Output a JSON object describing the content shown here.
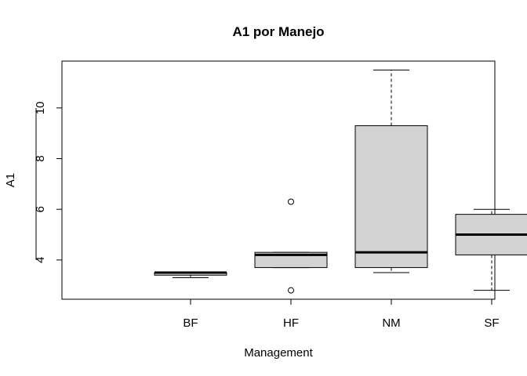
{
  "chart_data": {
    "type": "boxplot",
    "title": "A1 por Manejo",
    "xlabel": "Management",
    "ylabel": "A1",
    "ylim": [
      2.45,
      11.85
    ],
    "yticks": [
      4,
      6,
      8,
      10
    ],
    "categories": [
      "BF",
      "HF",
      "NM",
      "SF"
    ],
    "boxes": [
      {
        "category": "BF",
        "whisker_low": 3.3,
        "q1": 3.4,
        "median": 3.5,
        "q3": 3.5,
        "whisker_high": 3.5,
        "outliers": []
      },
      {
        "category": "HF",
        "whisker_low": 3.7,
        "q1": 3.7,
        "median": 4.2,
        "q3": 4.3,
        "whisker_high": 4.3,
        "outliers": [
          6.3,
          2.8
        ]
      },
      {
        "category": "NM",
        "whisker_low": 3.5,
        "q1": 3.7,
        "median": 4.3,
        "q3": 9.3,
        "whisker_high": 11.5,
        "outliers": []
      },
      {
        "category": "SF",
        "whisker_low": 2.8,
        "q1": 4.2,
        "median": 5.0,
        "q3": 5.8,
        "whisker_high": 6.0,
        "outliers": []
      }
    ],
    "box_fill": "#d3d3d3",
    "line_color": "#000000",
    "grid": false
  }
}
